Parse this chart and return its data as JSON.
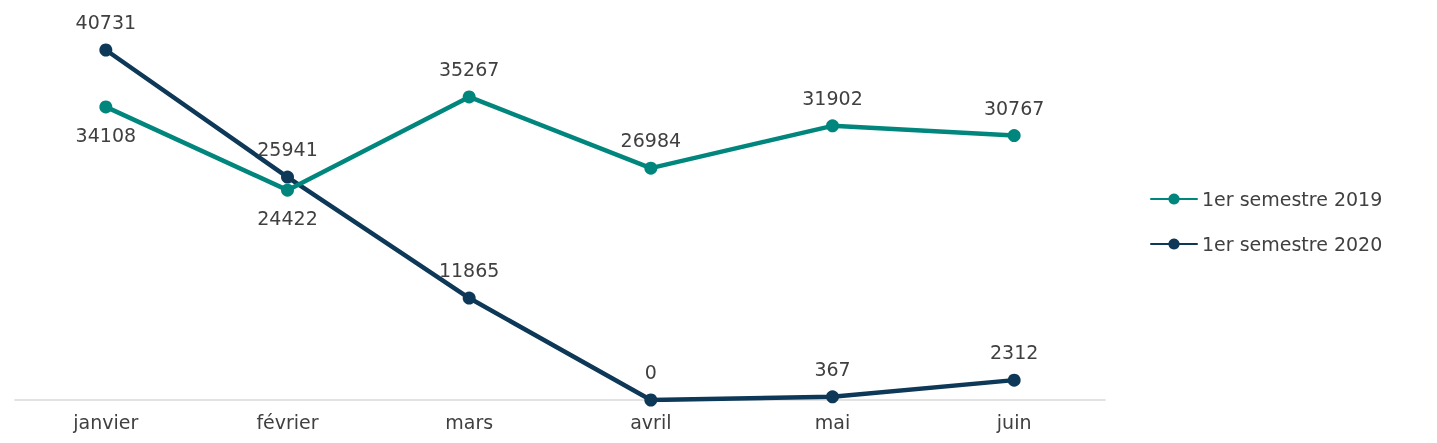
{
  "chart_data": {
    "type": "line",
    "categories": [
      "janvier",
      "février",
      "mars",
      "avril",
      "mai",
      "juin"
    ],
    "series": [
      {
        "name": "1er semestre 2019",
        "color": "#00867d",
        "values": [
          34108,
          24422,
          35267,
          26984,
          31902,
          30767
        ]
      },
      {
        "name": "1er semestre 2020",
        "color": "#0d3857",
        "values": [
          40731,
          25941,
          11865,
          0,
          367,
          2312
        ]
      }
    ],
    "data_labels": true,
    "legend": "right",
    "marker": "circle",
    "line_style": "solid",
    "grid": false
  }
}
